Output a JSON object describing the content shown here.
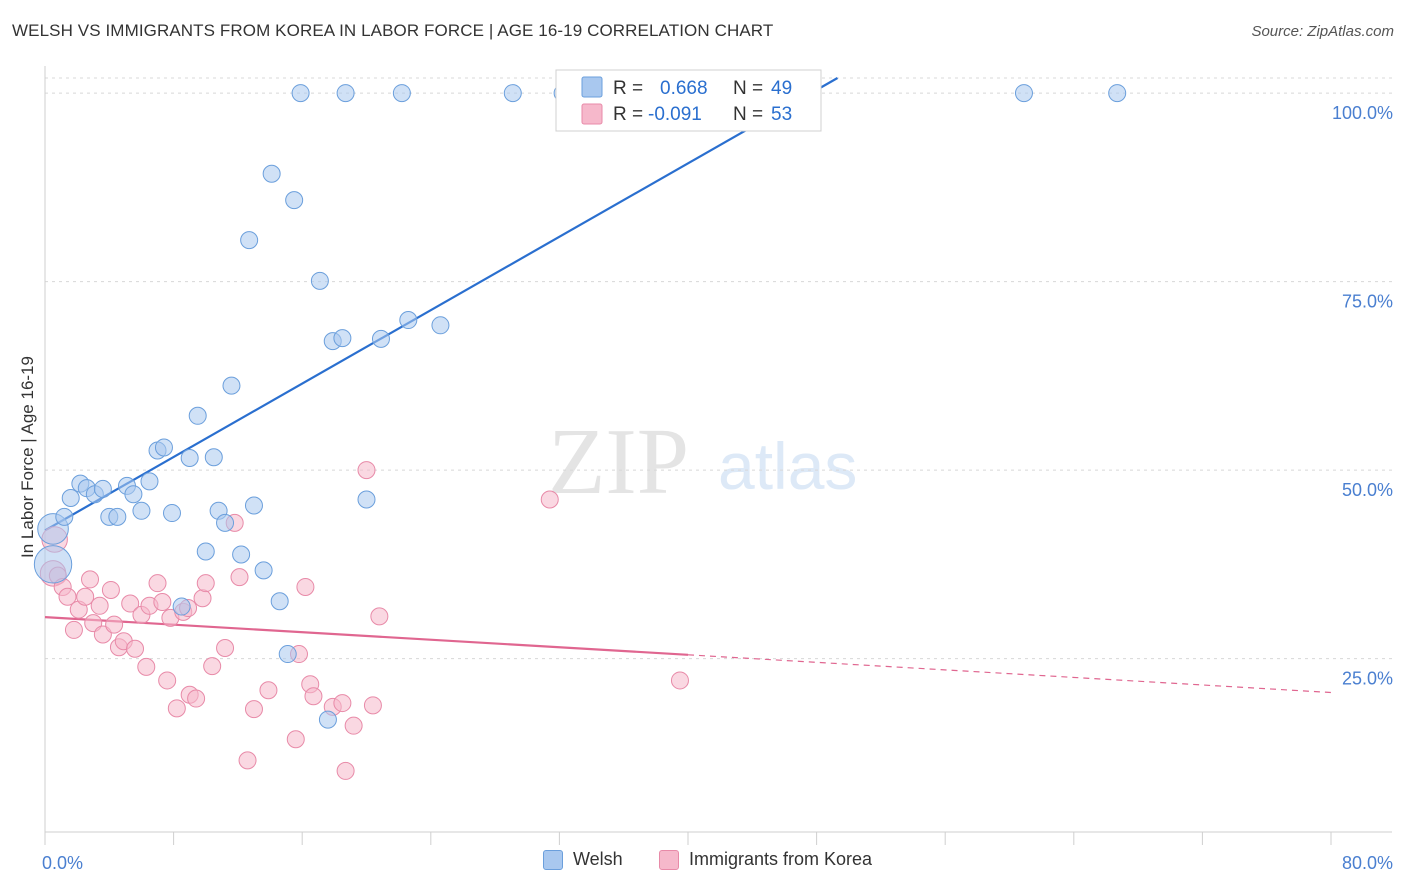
{
  "title": "WELSH VS IMMIGRANTS FROM KOREA IN LABOR FORCE | AGE 16-19 CORRELATION CHART",
  "source": "Source: ZipAtlas.com",
  "colors": {
    "welsh_fill": "#a9c8ef",
    "welsh_stroke": "#6b9fdc",
    "welsh_line": "#2a6fcf",
    "korea_fill": "#f6b8cb",
    "korea_stroke": "#e88aa8",
    "korea_line": "#e06690",
    "axis_text": "#4a7fd0",
    "grid": "#d8d8d8"
  },
  "stats": {
    "r_label": "R =",
    "n_label": "N =",
    "welsh_r": "0.668",
    "welsh_n": "49",
    "korea_r": "-0.091",
    "korea_n": "53"
  },
  "watermark": {
    "zip": "ZIP",
    "atlas": "atlas"
  },
  "chart_data": {
    "type": "scatter",
    "title": "WELSH VS IMMIGRANTS FROM KOREA IN LABOR FORCE | AGE 16-19 CORRELATION CHART",
    "xlabel": "",
    "ylabel": "In Labor Force | Age 16-19",
    "xlim": [
      0,
      80
    ],
    "ylim": [
      2,
      102
    ],
    "x_tick_labels": [
      "0.0%",
      "80.0%"
    ],
    "y_ticks": [
      25,
      50,
      75,
      100
    ],
    "y_tick_labels": [
      "25.0%",
      "50.0%",
      "75.0%",
      "100.0%"
    ],
    "grid": true,
    "legend_position": "bottom-center",
    "series": [
      {
        "name": "Welsh",
        "color": "#a9c8ef",
        "trend": {
          "x": [
            0,
            49.3
          ],
          "y": [
            42.0,
            102.0
          ],
          "extrapolated": false
        },
        "points": [
          [
            0.5,
            37.5,
            2.2
          ],
          [
            0.5,
            42.2,
            1.8
          ],
          [
            1.2,
            43.8,
            1
          ],
          [
            1.6,
            46.3,
            1
          ],
          [
            2.2,
            48.2,
            1
          ],
          [
            2.6,
            47.6,
            1
          ],
          [
            3.1,
            46.8,
            1
          ],
          [
            3.6,
            47.5,
            1
          ],
          [
            4.0,
            43.8,
            1
          ],
          [
            4.5,
            43.8,
            1
          ],
          [
            5.1,
            47.9,
            1
          ],
          [
            5.5,
            46.8,
            1
          ],
          [
            6.0,
            44.6,
            1
          ],
          [
            6.5,
            48.5,
            1
          ],
          [
            7.0,
            52.6,
            1
          ],
          [
            7.4,
            53.0,
            1
          ],
          [
            7.9,
            44.3,
            1
          ],
          [
            8.5,
            31.9,
            1
          ],
          [
            9.0,
            51.6,
            1
          ],
          [
            9.5,
            57.2,
            1
          ],
          [
            10.0,
            39.2,
            1
          ],
          [
            10.5,
            51.7,
            1
          ],
          [
            10.8,
            44.6,
            1
          ],
          [
            11.2,
            43.0,
            1
          ],
          [
            11.6,
            61.2,
            1
          ],
          [
            12.2,
            38.8,
            1
          ],
          [
            12.7,
            80.5,
            1
          ],
          [
            13.0,
            45.3,
            1
          ],
          [
            13.6,
            36.7,
            1
          ],
          [
            14.1,
            89.3,
            1
          ],
          [
            14.6,
            32.6,
            1
          ],
          [
            15.1,
            25.6,
            1
          ],
          [
            15.5,
            85.8,
            1
          ],
          [
            15.9,
            100.0,
            1
          ],
          [
            17.1,
            75.1,
            1
          ],
          [
            17.6,
            16.9,
            1
          ],
          [
            17.9,
            67.1,
            1
          ],
          [
            18.5,
            67.5,
            1
          ],
          [
            18.7,
            100.0,
            1
          ],
          [
            20.0,
            46.1,
            1
          ],
          [
            20.9,
            67.4,
            1
          ],
          [
            22.2,
            100.0,
            1
          ],
          [
            22.6,
            69.9,
            1
          ],
          [
            24.6,
            69.2,
            1
          ],
          [
            29.1,
            100.0,
            1
          ],
          [
            32.2,
            100.0,
            1
          ],
          [
            36.1,
            100.0,
            1
          ],
          [
            60.9,
            100.0,
            1
          ],
          [
            66.7,
            100.0,
            1
          ]
        ]
      },
      {
        "name": "Immigrants from Korea",
        "color": "#f6b8cb",
        "trend": {
          "x": [
            0,
            40.0,
            80.0
          ],
          "y": [
            30.5,
            25.5,
            20.5
          ],
          "solid_until": 40.0
        },
        "points": [
          [
            0.5,
            36.3,
            1.5
          ],
          [
            0.6,
            40.8,
            1.5
          ],
          [
            0.8,
            36.0,
            1
          ],
          [
            1.1,
            34.5,
            1
          ],
          [
            1.4,
            33.2,
            1
          ],
          [
            1.8,
            28.8,
            1
          ],
          [
            2.1,
            31.5,
            1
          ],
          [
            2.5,
            33.2,
            1
          ],
          [
            2.8,
            35.5,
            1
          ],
          [
            3.0,
            29.7,
            1
          ],
          [
            3.4,
            32.0,
            1
          ],
          [
            3.6,
            28.2,
            1
          ],
          [
            4.1,
            34.1,
            1
          ],
          [
            4.3,
            29.5,
            1
          ],
          [
            4.6,
            26.5,
            1
          ],
          [
            4.9,
            27.3,
            1
          ],
          [
            5.3,
            32.3,
            1
          ],
          [
            5.6,
            26.3,
            1
          ],
          [
            6.0,
            30.8,
            1
          ],
          [
            6.3,
            23.9,
            1
          ],
          [
            6.5,
            32.0,
            1
          ],
          [
            7.0,
            35.0,
            1
          ],
          [
            7.3,
            32.5,
            1
          ],
          [
            7.6,
            22.1,
            1
          ],
          [
            7.8,
            30.4,
            1
          ],
          [
            8.2,
            18.4,
            1
          ],
          [
            8.6,
            31.2,
            1
          ],
          [
            8.9,
            31.7,
            1
          ],
          [
            9.0,
            20.2,
            1
          ],
          [
            9.4,
            19.7,
            1
          ],
          [
            9.8,
            33.0,
            1
          ],
          [
            10.0,
            35.0,
            1
          ],
          [
            10.4,
            24.0,
            1
          ],
          [
            11.2,
            26.4,
            1
          ],
          [
            11.8,
            43.0,
            1
          ],
          [
            12.1,
            35.8,
            1
          ],
          [
            12.6,
            11.5,
            1
          ],
          [
            13.0,
            18.3,
            1
          ],
          [
            13.9,
            20.8,
            1
          ],
          [
            15.6,
            14.3,
            1
          ],
          [
            15.8,
            25.6,
            1
          ],
          [
            16.2,
            34.5,
            1
          ],
          [
            16.5,
            21.6,
            1
          ],
          [
            16.7,
            20.0,
            1
          ],
          [
            17.9,
            18.6,
            1
          ],
          [
            18.5,
            19.1,
            1
          ],
          [
            18.7,
            10.1,
            1
          ],
          [
            19.2,
            16.1,
            1
          ],
          [
            20.0,
            50.0,
            1
          ],
          [
            20.4,
            18.8,
            1
          ],
          [
            20.8,
            30.6,
            1
          ],
          [
            31.4,
            46.1,
            1
          ],
          [
            39.5,
            22.1,
            1
          ]
        ]
      }
    ],
    "note_point_triplets": "each point is [x percent, y percent, relative size]"
  }
}
